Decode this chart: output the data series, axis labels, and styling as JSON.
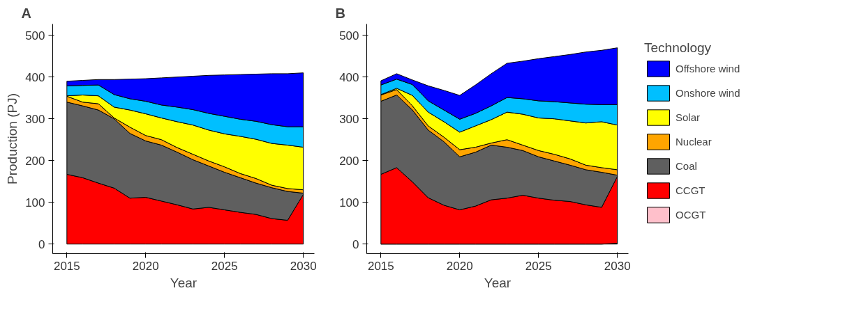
{
  "chart_data": [
    {
      "type": "area",
      "title": "A",
      "xlabel": "Year",
      "ylabel": "Production (PJ)",
      "stacked": true,
      "grid": false,
      "legend": false,
      "x": [
        2015,
        2016,
        2017,
        2018,
        2019,
        2020,
        2021,
        2022,
        2023,
        2024,
        2025,
        2026,
        2027,
        2028,
        2029,
        2030
      ],
      "xlim": [
        2014.1,
        2030.7
      ],
      "xticks": [
        2015,
        2020,
        2025,
        2030
      ],
      "ylim": [
        -23,
        527
      ],
      "yticks": [
        0,
        100,
        200,
        300,
        400,
        500
      ],
      "series": [
        {
          "color": "#ff0000",
          "values": [
            167,
            159,
            146,
            134,
            110,
            112,
            103,
            94,
            84,
            88,
            82,
            76,
            71,
            61,
            57,
            119
          ]
        },
        {
          "color": "#5f5f5f",
          "values": [
            173,
            172,
            175,
            166,
            155,
            135,
            134,
            126,
            118,
            99,
            90,
            83,
            75,
            74,
            69,
            3
          ]
        },
        {
          "color": "#ffa500",
          "values": [
            14,
            9,
            15,
            2,
            15,
            13,
            13,
            11,
            13,
            12,
            13,
            10,
            11,
            6,
            7,
            8
          ]
        },
        {
          "color": "#ffff00",
          "values": [
            1,
            17,
            19,
            26,
            41,
            52,
            52,
            62,
            70,
            74,
            79,
            89,
            94,
            100,
            104,
            102
          ]
        },
        {
          "color": "#00bfff",
          "values": [
            24,
            23,
            26,
            30,
            27,
            30,
            31,
            35,
            37,
            40,
            42,
            41,
            43,
            45,
            44,
            49
          ]
        },
        {
          "color": "#0000ff",
          "values": [
            11,
            12,
            13,
            36,
            47,
            54,
            65,
            72,
            80,
            91,
            99,
            107,
            113,
            122,
            127,
            129
          ]
        }
      ]
    },
    {
      "type": "area",
      "title": "B",
      "xlabel": "Year",
      "stacked": true,
      "grid": false,
      "legend": "right",
      "legend_title": "Technology",
      "x": [
        2015,
        2016,
        2017,
        2018,
        2019,
        2020,
        2021,
        2022,
        2023,
        2024,
        2025,
        2026,
        2027,
        2028,
        2029,
        2030
      ],
      "xlim": [
        2014.1,
        2030.7
      ],
      "xticks": [
        2015,
        2020,
        2025,
        2030
      ],
      "ylim": [
        -23,
        527
      ],
      "yticks": [
        0,
        100,
        200,
        300,
        400,
        500
      ],
      "series": [
        {
          "name": "OCGT",
          "color": "#ffc0cb",
          "values": [
            0,
            0,
            0,
            0,
            0,
            0,
            0,
            0,
            0,
            0,
            0,
            0,
            0,
            0,
            0,
            2
          ]
        },
        {
          "name": "CCGT",
          "color": "#ff0000",
          "values": [
            167,
            183,
            149,
            111,
            93,
            82,
            91,
            106,
            110,
            117,
            110,
            105,
            102,
            94,
            88,
            160
          ]
        },
        {
          "name": "Coal",
          "color": "#5f5f5f",
          "values": [
            175,
            174,
            172,
            162,
            152,
            127,
            129,
            131,
            122,
            107,
            99,
            94,
            87,
            84,
            84,
            3
          ]
        },
        {
          "name": "Nuclear",
          "color": "#ffa500",
          "values": [
            15,
            13,
            10,
            10,
            11,
            17,
            12,
            5,
            18,
            13,
            15,
            16,
            15,
            11,
            11,
            13
          ]
        },
        {
          "name": "Solar",
          "color": "#ffff00",
          "values": [
            1,
            3,
            25,
            33,
            37,
            42,
            51,
            56,
            66,
            74,
            78,
            85,
            91,
            101,
            110,
            107
          ]
        },
        {
          "name": "Onshore wind",
          "color": "#00bfff",
          "values": [
            23,
            22,
            26,
            27,
            28,
            31,
            30,
            33,
            35,
            37,
            41,
            41,
            43,
            45,
            41,
            49
          ]
        },
        {
          "name": "Offshore wind",
          "color": "#0000ff",
          "values": [
            10,
            13,
            11,
            36,
            47,
            57,
            68,
            77,
            82,
            90,
            101,
            108,
            116,
            125,
            130,
            136
          ]
        }
      ]
    }
  ]
}
